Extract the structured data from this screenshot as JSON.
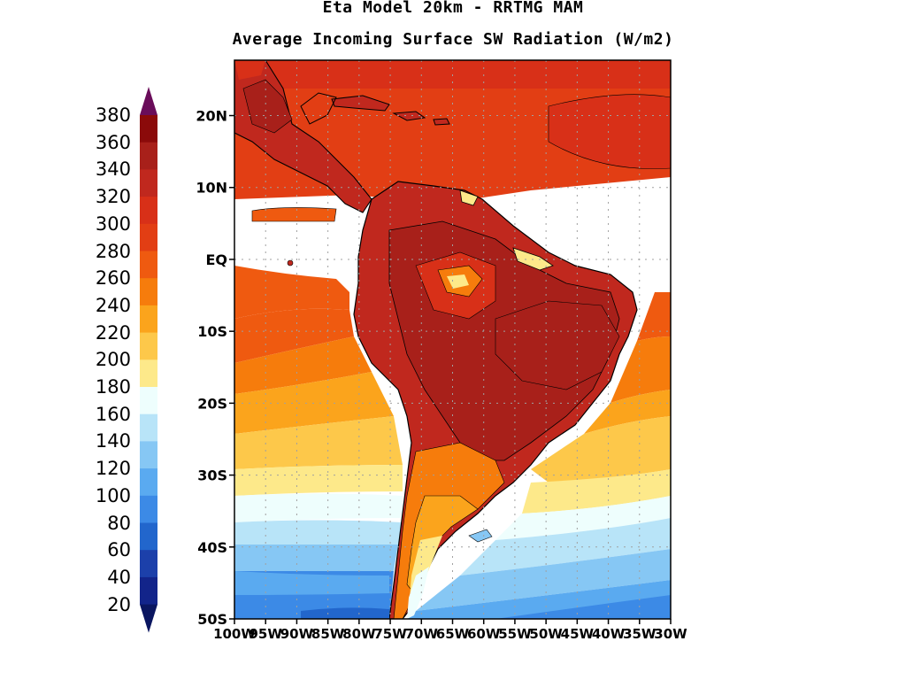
{
  "title": {
    "line1": "Eta Model 20km - RRTMG MAM",
    "line2": "Average Incoming Surface SW Radiation (W/m2)"
  },
  "colorbar": {
    "labels": [
      "380",
      "360",
      "340",
      "320",
      "300",
      "280",
      "260",
      "240",
      "220",
      "200",
      "180",
      "160",
      "140",
      "120",
      "100",
      "80",
      "60",
      "40",
      "20"
    ],
    "colors": [
      "#6a0d5a",
      "#8b0a0a",
      "#a8201a",
      "#c0281e",
      "#d83018",
      "#e23e14",
      "#ef5a10",
      "#f67c0c",
      "#fba41c",
      "#fdc84a",
      "#fde98a",
      "#eefefd",
      "#b8e4f8",
      "#86c7f4",
      "#5aaaf0",
      "#3c8ae6",
      "#2266cc",
      "#1c40aa",
      "#12248a",
      "#0a1660"
    ]
  },
  "axes": {
    "lat_labels": [
      "20N",
      "10N",
      "EQ",
      "10S",
      "20S",
      "30S",
      "40S",
      "50S"
    ],
    "lon_labels": [
      "100W",
      "95W",
      "90W",
      "85W",
      "80W",
      "75W",
      "70W",
      "65W",
      "60W",
      "55W",
      "50W",
      "45W",
      "40W",
      "35W",
      "30W"
    ]
  },
  "colors": {
    "grid": "#a0a0a0",
    "coast": "#000000",
    "background": "#ffffff"
  }
}
